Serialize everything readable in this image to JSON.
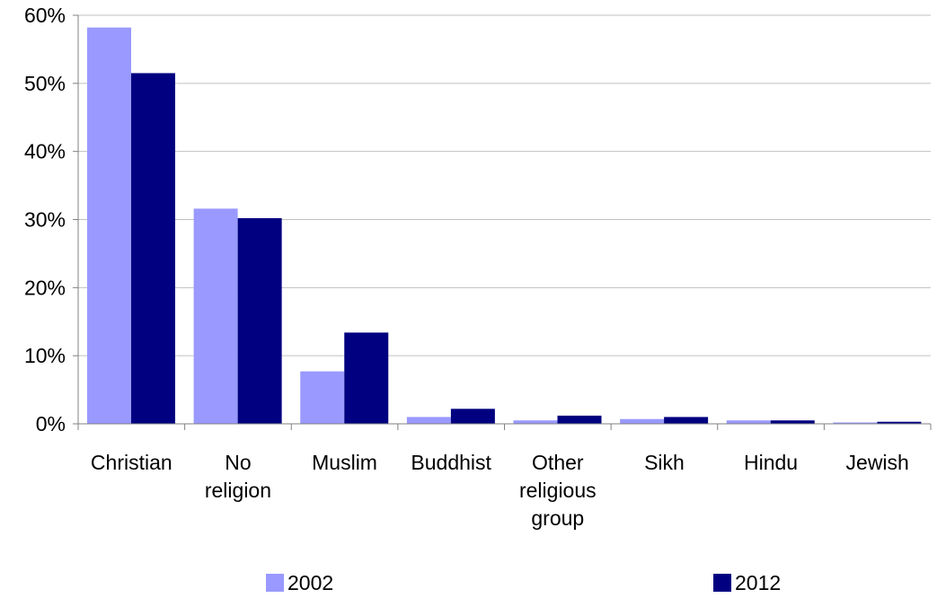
{
  "chart_data": {
    "type": "bar",
    "title": "",
    "xlabel": "",
    "ylabel": "",
    "categories": [
      [
        "Christian"
      ],
      [
        "No",
        "religion"
      ],
      [
        "Muslim"
      ],
      [
        "Buddhist"
      ],
      [
        "Other",
        "religious",
        "group"
      ],
      [
        "Sikh"
      ],
      [
        "Hindu"
      ],
      [
        "Jewish"
      ]
    ],
    "series": [
      {
        "name": "2002",
        "color": "#9999ff",
        "values": [
          58.2,
          31.6,
          7.7,
          1.0,
          0.5,
          0.7,
          0.5,
          0.2
        ]
      },
      {
        "name": "2012",
        "color": "#000080",
        "values": [
          51.5,
          30.2,
          13.4,
          2.2,
          1.2,
          1.0,
          0.5,
          0.3
        ]
      }
    ],
    "ylim": [
      0,
      60
    ],
    "y_ticks": [
      0,
      10,
      20,
      30,
      40,
      50,
      60
    ],
    "y_tick_labels": [
      "0%",
      "10%",
      "20%",
      "30%",
      "40%",
      "50%",
      "60%"
    ],
    "grid": true,
    "legend_position": "bottom"
  }
}
